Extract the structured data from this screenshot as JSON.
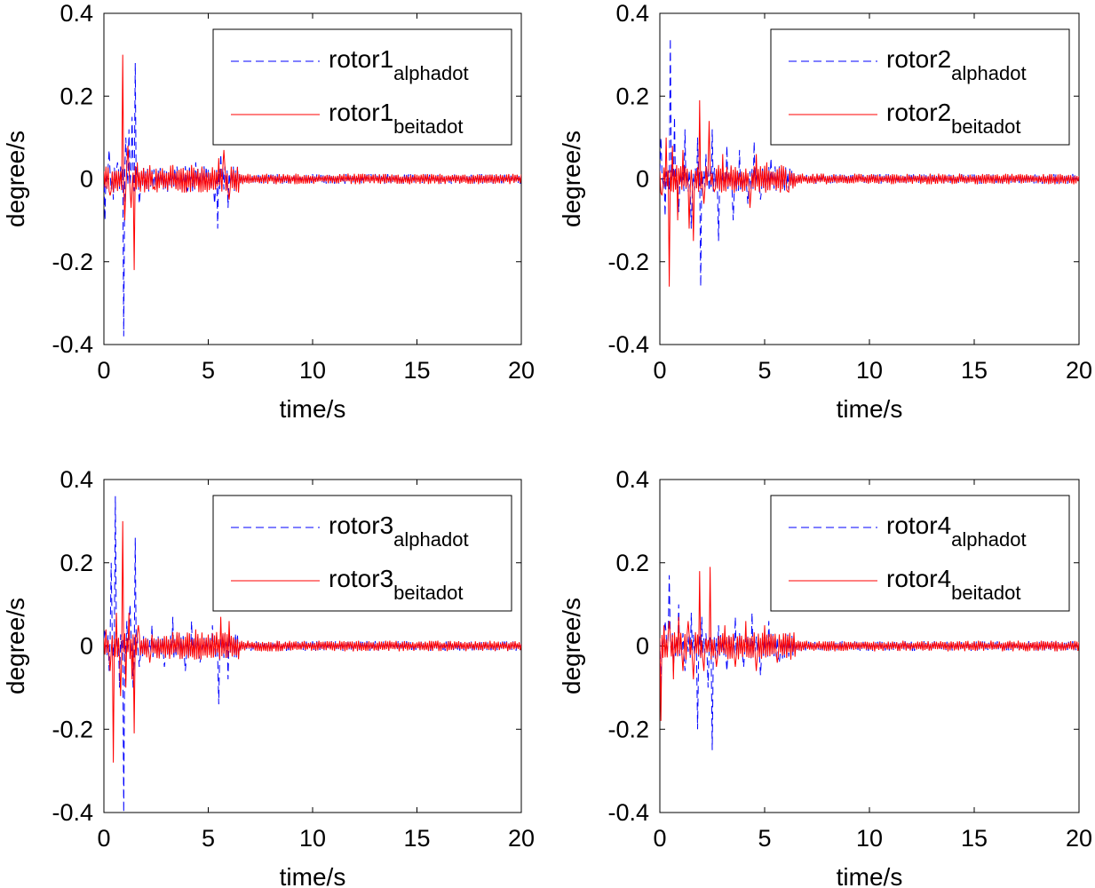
{
  "chart_data": [
    {
      "type": "line",
      "panel": "top-left",
      "xlabel": "time/s",
      "ylabel": "degree/s",
      "xlim": [
        0,
        20
      ],
      "ylim": [
        -0.4,
        0.4
      ],
      "xticks": [
        0,
        5,
        10,
        15,
        20
      ],
      "xtick_labels": [
        "0",
        "5",
        "10",
        "15",
        "20"
      ],
      "yticks": [
        -0.4,
        -0.2,
        0,
        0.2,
        0.4
      ],
      "ytick_labels": [
        "-0.4",
        "-0.2",
        "0",
        "0.2",
        "0.4"
      ],
      "legend_position": "top-right",
      "series": [
        {
          "name": "rotor1",
          "subscript": "alphadot",
          "color": "#0000ff",
          "style": "dashed",
          "seed": 11,
          "amp": 0.012,
          "spikes": [
            [
              0.05,
              -0.1
            ],
            [
              0.25,
              0.07
            ],
            [
              0.45,
              -0.05
            ],
            [
              0.65,
              0.04
            ],
            [
              0.8,
              0.03
            ],
            [
              0.95,
              -0.38
            ],
            [
              1.05,
              0.1
            ],
            [
              1.2,
              0.12
            ],
            [
              1.35,
              0.15
            ],
            [
              1.5,
              0.28
            ],
            [
              1.7,
              -0.06
            ],
            [
              2.2,
              -0.02
            ],
            [
              3.5,
              0.03
            ],
            [
              4.0,
              -0.03
            ],
            [
              4.4,
              0.04
            ],
            [
              5.3,
              -0.06
            ],
            [
              5.45,
              -0.12
            ],
            [
              5.6,
              0.06
            ],
            [
              5.8,
              0.03
            ],
            [
              5.95,
              -0.07
            ],
            [
              6.2,
              0.03
            ]
          ]
        },
        {
          "name": "rotor1",
          "subscript": "beitadot",
          "color": "#ff0000",
          "style": "solid",
          "seed": 23,
          "amp": 0.013,
          "spikes": [
            [
              0.1,
              0.03
            ],
            [
              0.3,
              -0.04
            ],
            [
              0.6,
              0.02
            ],
            [
              0.9,
              0.3
            ],
            [
              1.0,
              -0.1
            ],
            [
              1.15,
              0.08
            ],
            [
              1.3,
              -0.07
            ],
            [
              1.45,
              -0.22
            ],
            [
              1.6,
              0.04
            ],
            [
              2.4,
              -0.02
            ],
            [
              4.7,
              0.03
            ],
            [
              5.5,
              0.05
            ],
            [
              5.75,
              0.07
            ],
            [
              6.0,
              -0.05
            ]
          ]
        }
      ]
    },
    {
      "type": "line",
      "panel": "top-right",
      "xlabel": "time/s",
      "ylabel": "degree/s",
      "xlim": [
        0,
        20
      ],
      "ylim": [
        -0.4,
        0.4
      ],
      "xticks": [
        0,
        5,
        10,
        15,
        20
      ],
      "xtick_labels": [
        "0",
        "5",
        "10",
        "15",
        "20"
      ],
      "yticks": [
        -0.4,
        -0.2,
        0,
        0.2,
        0.4
      ],
      "ytick_labels": [
        "-0.4",
        "-0.2",
        "0",
        "0.2",
        "0.4"
      ],
      "legend_position": "top-right",
      "series": [
        {
          "name": "rotor2",
          "subscript": "alphadot",
          "color": "#0000ff",
          "style": "dashed",
          "seed": 37,
          "amp": 0.012,
          "spikes": [
            [
              0.05,
              0.1
            ],
            [
              0.25,
              -0.09
            ],
            [
              0.5,
              0.34
            ],
            [
              0.7,
              0.15
            ],
            [
              0.9,
              -0.08
            ],
            [
              1.2,
              0.12
            ],
            [
              1.5,
              -0.12
            ],
            [
              1.8,
              0.1
            ],
            [
              1.95,
              -0.26
            ],
            [
              2.2,
              0.06
            ],
            [
              2.5,
              0.12
            ],
            [
              2.8,
              -0.15
            ],
            [
              3.2,
              0.08
            ],
            [
              3.5,
              -0.1
            ],
            [
              3.8,
              0.07
            ],
            [
              4.2,
              -0.06
            ],
            [
              4.5,
              0.09
            ],
            [
              4.8,
              -0.05
            ],
            [
              5.3,
              0.05
            ],
            [
              6.0,
              0.03
            ]
          ]
        },
        {
          "name": "rotor2",
          "subscript": "beitadot",
          "color": "#ff0000",
          "style": "solid",
          "seed": 41,
          "amp": 0.013,
          "spikes": [
            [
              0.1,
              -0.04
            ],
            [
              0.3,
              0.1
            ],
            [
              0.45,
              -0.26
            ],
            [
              0.6,
              0.08
            ],
            [
              0.85,
              -0.1
            ],
            [
              1.1,
              0.07
            ],
            [
              1.4,
              -0.12
            ],
            [
              1.6,
              -0.15
            ],
            [
              1.9,
              0.19
            ],
            [
              2.1,
              -0.06
            ],
            [
              2.35,
              0.14
            ],
            [
              2.6,
              -0.03
            ],
            [
              3.0,
              0.06
            ],
            [
              4.3,
              -0.07
            ],
            [
              4.6,
              0.06
            ],
            [
              5.1,
              0.04
            ],
            [
              6.1,
              -0.03
            ]
          ]
        }
      ]
    },
    {
      "type": "line",
      "panel": "bottom-left",
      "xlabel": "time/s",
      "ylabel": "degree/s",
      "xlim": [
        0,
        20
      ],
      "ylim": [
        -0.4,
        0.4
      ],
      "xticks": [
        0,
        5,
        10,
        15,
        20
      ],
      "xtick_labels": [
        "0",
        "5",
        "10",
        "15",
        "20"
      ],
      "yticks": [
        -0.4,
        -0.2,
        0,
        0.2,
        0.4
      ],
      "ytick_labels": [
        "-0.4",
        "-0.2",
        "0",
        "0.2",
        "0.4"
      ],
      "legend_position": "top-right",
      "series": [
        {
          "name": "rotor3",
          "subscript": "alphadot",
          "color": "#0000ff",
          "style": "dashed",
          "seed": 53,
          "amp": 0.012,
          "spikes": [
            [
              0.05,
              0.04
            ],
            [
              0.25,
              -0.06
            ],
            [
              0.35,
              0.2
            ],
            [
              0.55,
              0.36
            ],
            [
              0.75,
              -0.1
            ],
            [
              0.95,
              -0.4
            ],
            [
              1.1,
              0.06
            ],
            [
              1.25,
              0.1
            ],
            [
              1.4,
              -0.1
            ],
            [
              1.5,
              0.26
            ],
            [
              1.7,
              -0.05
            ],
            [
              2.3,
              0.05
            ],
            [
              2.9,
              -0.05
            ],
            [
              3.3,
              0.07
            ],
            [
              3.9,
              -0.06
            ],
            [
              4.2,
              0.06
            ],
            [
              4.6,
              -0.04
            ],
            [
              5.2,
              0.05
            ],
            [
              5.5,
              -0.14
            ],
            [
              5.95,
              -0.08
            ],
            [
              6.3,
              0.03
            ]
          ]
        },
        {
          "name": "rotor3",
          "subscript": "beitadot",
          "color": "#ff0000",
          "style": "solid",
          "seed": 67,
          "amp": 0.013,
          "spikes": [
            [
              0.1,
              0.04
            ],
            [
              0.3,
              -0.06
            ],
            [
              0.45,
              -0.28
            ],
            [
              0.6,
              0.08
            ],
            [
              0.8,
              -0.12
            ],
            [
              0.9,
              0.3
            ],
            [
              1.05,
              -0.1
            ],
            [
              1.2,
              0.08
            ],
            [
              1.35,
              -0.08
            ],
            [
              1.45,
              -0.21
            ],
            [
              1.65,
              0.05
            ],
            [
              2.2,
              -0.04
            ],
            [
              4.4,
              0.04
            ],
            [
              5.6,
              0.07
            ],
            [
              6.0,
              0.06
            ]
          ]
        }
      ]
    },
    {
      "type": "line",
      "panel": "bottom-right",
      "xlabel": "time/s",
      "ylabel": "degree/s",
      "xlim": [
        0,
        20
      ],
      "ylim": [
        -0.4,
        0.4
      ],
      "xticks": [
        0,
        5,
        10,
        15,
        20
      ],
      "xtick_labels": [
        "0",
        "5",
        "10",
        "15",
        "20"
      ],
      "yticks": [
        -0.4,
        -0.2,
        0,
        0.2,
        0.4
      ],
      "ytick_labels": [
        "-0.4",
        "-0.2",
        "0",
        "0.2",
        "0.4"
      ],
      "legend_position": "top-right",
      "series": [
        {
          "name": "rotor4",
          "subscript": "alphadot",
          "color": "#0000ff",
          "style": "dashed",
          "seed": 71,
          "amp": 0.012,
          "spikes": [
            [
              0.05,
              -0.1
            ],
            [
              0.25,
              0.06
            ],
            [
              0.45,
              0.17
            ],
            [
              0.65,
              -0.06
            ],
            [
              0.9,
              0.1
            ],
            [
              1.2,
              -0.06
            ],
            [
              1.5,
              0.08
            ],
            [
              1.8,
              -0.2
            ],
            [
              2.0,
              0.07
            ],
            [
              2.3,
              -0.1
            ],
            [
              2.5,
              -0.25
            ],
            [
              2.8,
              0.05
            ],
            [
              3.2,
              -0.06
            ],
            [
              3.6,
              0.07
            ],
            [
              4.0,
              -0.05
            ],
            [
              4.4,
              0.08
            ],
            [
              4.8,
              -0.07
            ],
            [
              5.2,
              0.06
            ],
            [
              5.7,
              -0.04
            ],
            [
              6.0,
              0.03
            ]
          ]
        },
        {
          "name": "rotor4",
          "subscript": "beitadot",
          "color": "#ff0000",
          "style": "solid",
          "seed": 83,
          "amp": 0.013,
          "spikes": [
            [
              0.05,
              -0.18
            ],
            [
              0.2,
              0.05
            ],
            [
              0.45,
              0.06
            ],
            [
              0.65,
              -0.08
            ],
            [
              0.9,
              0.07
            ],
            [
              1.1,
              -0.06
            ],
            [
              1.35,
              0.06
            ],
            [
              1.6,
              -0.08
            ],
            [
              1.9,
              0.18
            ],
            [
              2.1,
              -0.06
            ],
            [
              2.4,
              0.19
            ],
            [
              2.7,
              -0.05
            ],
            [
              3.1,
              0.05
            ],
            [
              3.6,
              -0.05
            ],
            [
              4.1,
              0.06
            ],
            [
              4.6,
              -0.06
            ],
            [
              5.0,
              0.05
            ],
            [
              5.6,
              -0.04
            ],
            [
              6.0,
              0.03
            ]
          ]
        }
      ]
    }
  ]
}
